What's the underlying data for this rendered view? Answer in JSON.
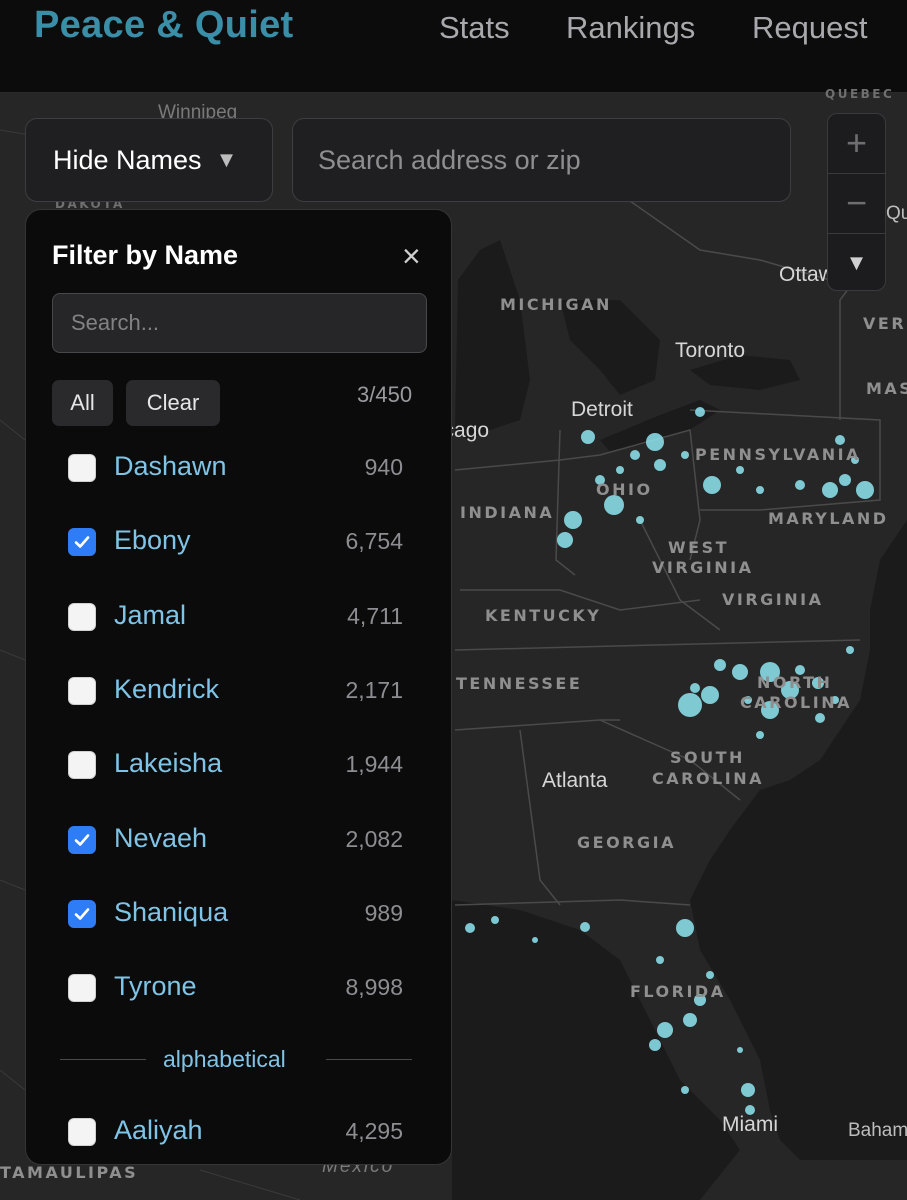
{
  "header": {
    "brand": "Peace & Quiet",
    "nav": [
      {
        "label": "Stats"
      },
      {
        "label": "Rankings"
      },
      {
        "label": "Request"
      }
    ]
  },
  "toolbar": {
    "hide_names_label": "Hide Names",
    "caret_glyph": "▼",
    "search_placeholder": "Search address or zip"
  },
  "zoom": {
    "in": "+",
    "out": "−",
    "compass": "▼"
  },
  "filter_panel": {
    "title": "Filter by Name",
    "close_glyph": "×",
    "search_placeholder": "Search...",
    "all_label": "All",
    "clear_label": "Clear",
    "selected_count": "3/450",
    "names": [
      {
        "name": "Dashawn",
        "count": "940",
        "checked": false
      },
      {
        "name": "Ebony",
        "count": "6,754",
        "checked": true
      },
      {
        "name": "Jamal",
        "count": "4,711",
        "checked": false
      },
      {
        "name": "Kendrick",
        "count": "2,171",
        "checked": false
      },
      {
        "name": "Lakeisha",
        "count": "1,944",
        "checked": false
      },
      {
        "name": "Nevaeh",
        "count": "2,082",
        "checked": true
      },
      {
        "name": "Shaniqua",
        "count": "989",
        "checked": true
      },
      {
        "name": "Tyrone",
        "count": "8,998",
        "checked": false
      }
    ],
    "section_label": "alphabetical",
    "alpha_names": [
      {
        "name": "Aaliyah",
        "count": "4,295",
        "checked": false
      }
    ]
  },
  "map": {
    "region_labels": [
      "MICHIGAN",
      "PENNSYLVANIA",
      "OHIO",
      "INDIANA",
      "MARYLAND",
      "WEST",
      "VIRGINIA",
      "VIRGINIA",
      "KENTUCKY",
      "TENNESSEE",
      "NORTH",
      "CAROLINA",
      "SOUTH",
      "CAROLINA",
      "GEORGIA",
      "FLORIDA",
      "TAMAULIPAS",
      "DAKOTA",
      "VERM",
      "MAS",
      "QUEBEC"
    ],
    "city_labels": [
      "Toronto",
      "Detroit",
      "Chicago",
      "Atlanta",
      "Miami",
      "Ottawa",
      "Winnipeg",
      "Mexico",
      "Bahamas",
      "Qu"
    ],
    "heat_color": "#8fe6f2"
  }
}
